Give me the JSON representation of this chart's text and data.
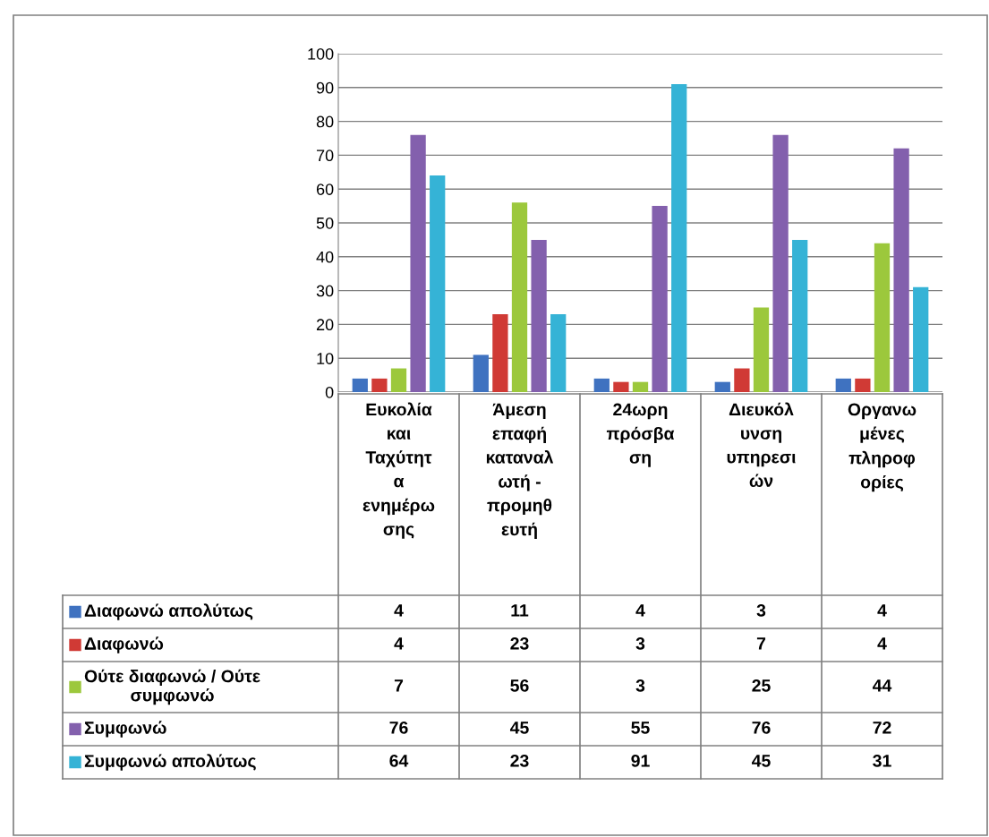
{
  "chart_data": {
    "type": "bar",
    "categories": [
      "Ευκολία\nκαι\nΤαχύτητ\nα\nενημέρω\nσης",
      "Άμεση\nεπαφή\nκαταναλ\nωτή -\nπρομηθ\nευτή",
      "24ωρη\nπρόσβα\nση",
      "Διευκόλ\nυνση\nυπηρεσι\nών",
      "Οργανω\nμένες\nπληροφ\nορίες"
    ],
    "series": [
      {
        "name": "Διαφωνώ απολύτως",
        "color": "#3f72c0",
        "values": [
          4,
          11,
          4,
          3,
          4
        ]
      },
      {
        "name": "Διαφωνώ",
        "color": "#d03a35",
        "values": [
          4,
          23,
          3,
          7,
          4
        ]
      },
      {
        "name": "Ούτε διαφωνώ / Ούτε\nσυμφωνώ",
        "color": "#9cc83c",
        "values": [
          7,
          56,
          3,
          25,
          44
        ]
      },
      {
        "name": "Συμφωνώ",
        "color": "#8360ad",
        "values": [
          76,
          45,
          55,
          76,
          72
        ]
      },
      {
        "name": "Συμφωνώ απολύτως",
        "color": "#35b3d6",
        "values": [
          64,
          23,
          91,
          45,
          31
        ]
      }
    ],
    "ylim": [
      0,
      100
    ],
    "yticks": [
      0,
      10,
      20,
      30,
      40,
      50,
      60,
      70,
      80,
      90,
      100
    ],
    "grid": "y",
    "legend": "bottom",
    "data_labels": true
  }
}
